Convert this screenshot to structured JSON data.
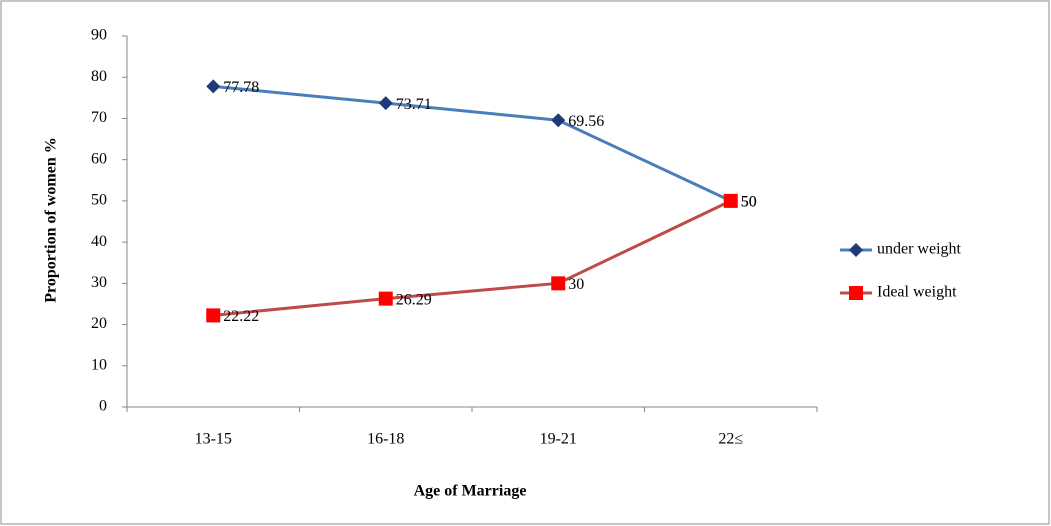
{
  "chart_data": {
    "type": "line",
    "x_label": "Age of Marriage",
    "y_label": "Proportion of women %",
    "categories": [
      "13-15",
      "16-18",
      "19-21",
      "22≤"
    ],
    "series": [
      {
        "name": "under weight",
        "color": "#4a7ebb",
        "marker_color": "#1f3a78",
        "marker": "diamond",
        "values": [
          77.78,
          73.71,
          69.56,
          50
        ]
      },
      {
        "name": "Ideal weight",
        "color": "#be4b48",
        "marker_color": "#ff0000",
        "marker": "square",
        "values": [
          22.22,
          26.29,
          30,
          50
        ]
      }
    ],
    "ylim": [
      0,
      90
    ],
    "yticks": [
      0,
      10,
      20,
      30,
      40,
      50,
      60,
      70,
      80,
      90
    ],
    "grid": false,
    "legend": "right"
  }
}
